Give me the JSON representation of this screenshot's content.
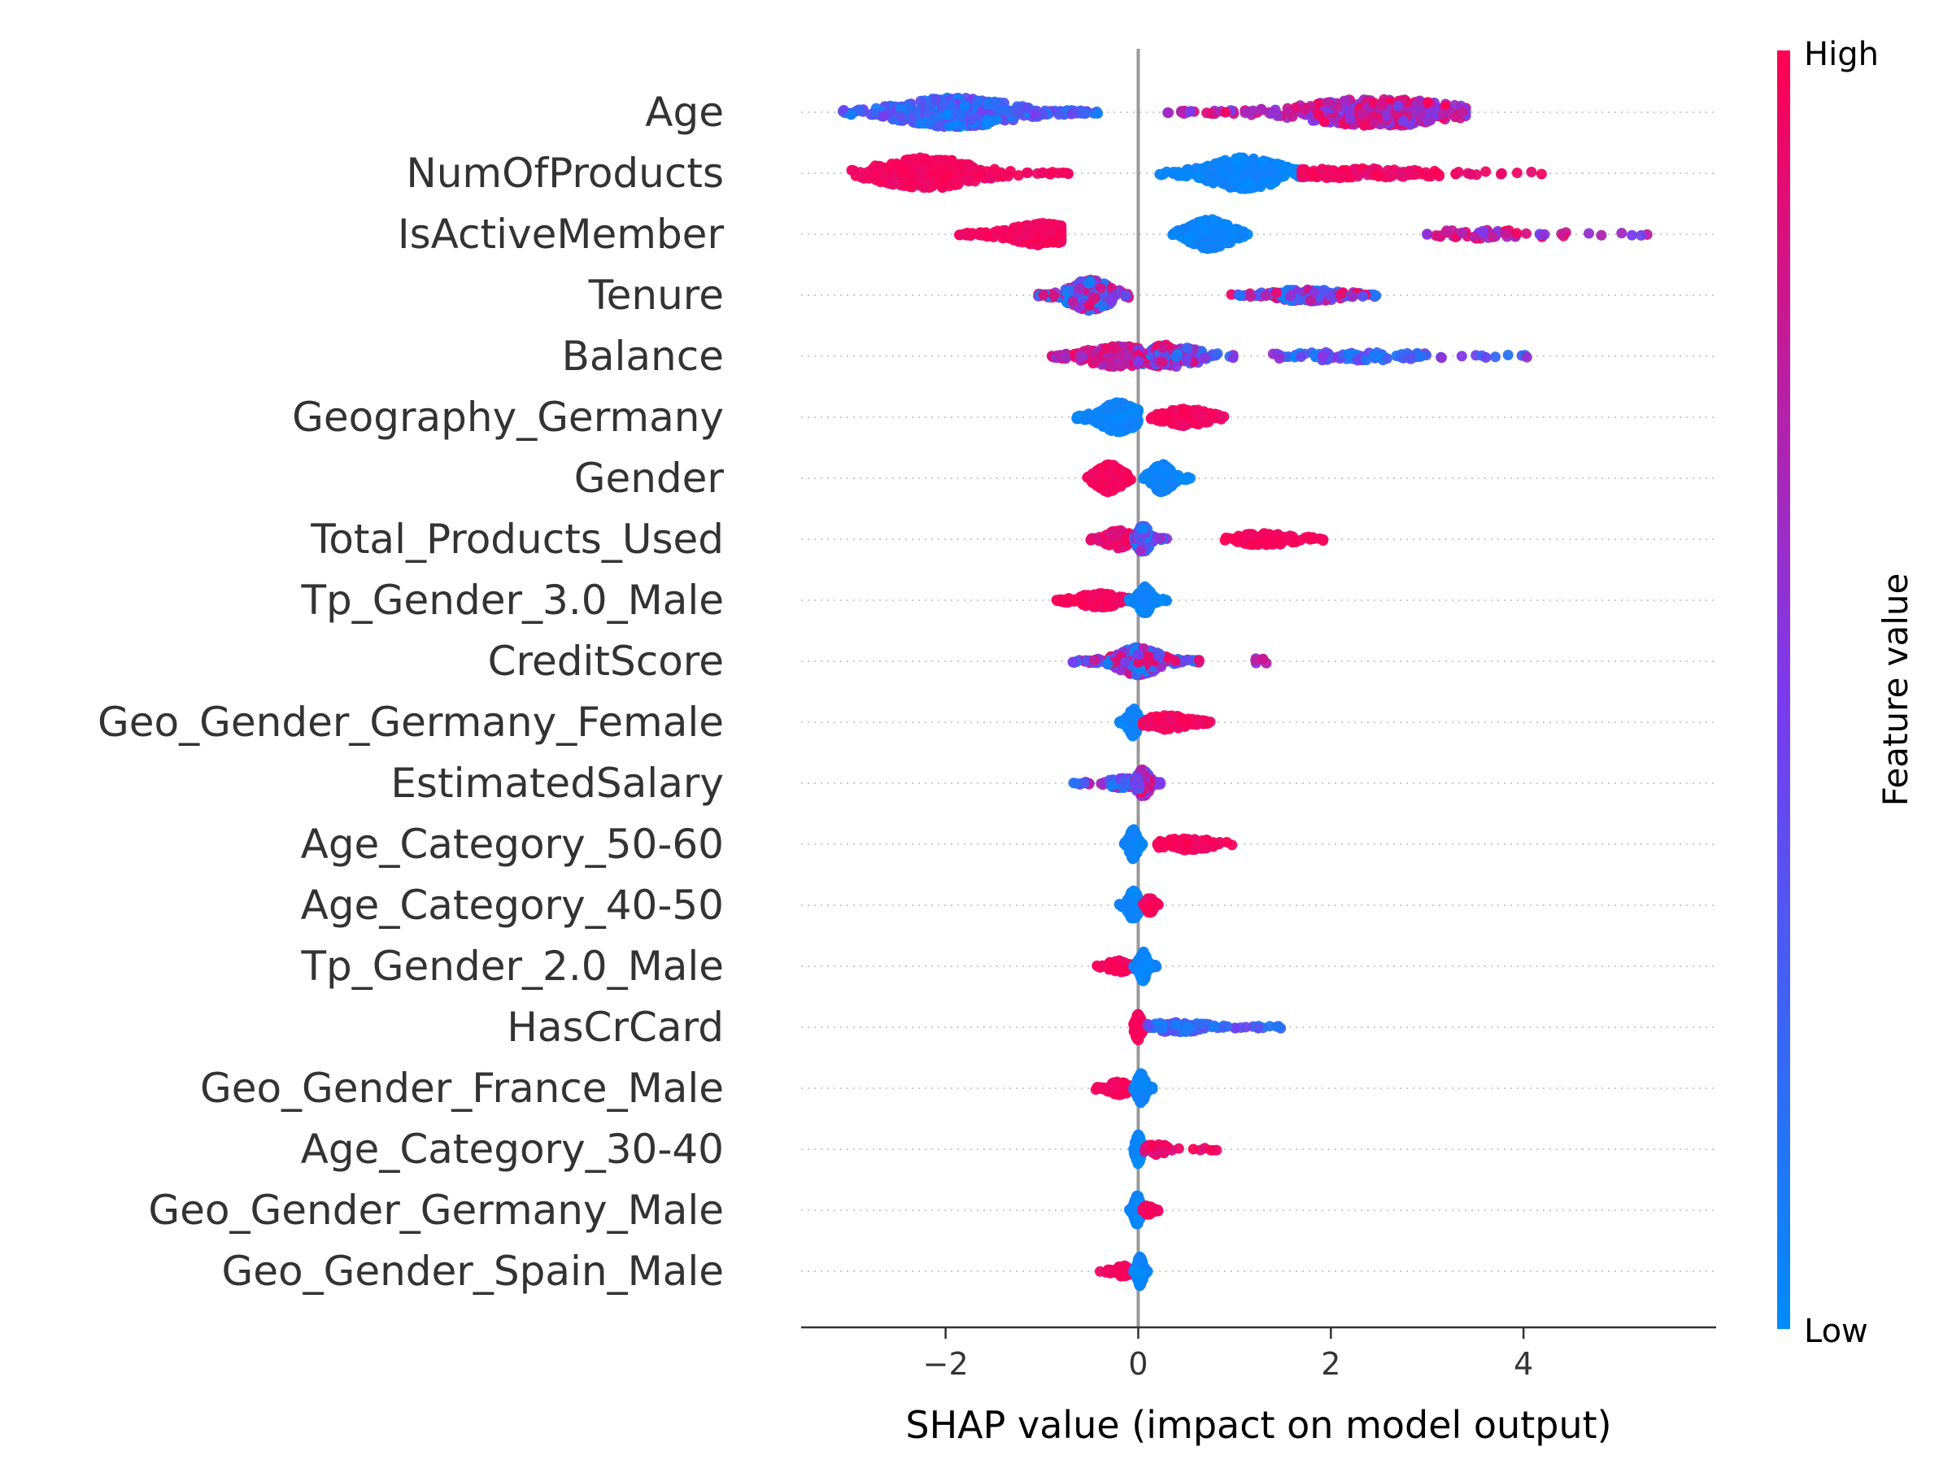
{
  "chart_data": {
    "type": "scatter",
    "subtype": "shap-beeswarm",
    "xlabel": "SHAP value (impact on model output)",
    "ylabel": "",
    "xlim": [
      -3.5,
      6.0
    ],
    "xticks": [
      -2,
      0,
      2,
      4
    ],
    "xtick_labels": [
      "−2",
      "0",
      "2",
      "4"
    ],
    "grid": false,
    "zero_line": 0,
    "colorbar": {
      "title": "Feature value",
      "high_label": "High",
      "low_label": "Low",
      "low_color": "#008bfb",
      "mid_color": "#7c3aed",
      "high_color": "#ff0052"
    },
    "features": [
      {
        "name": "Age",
        "clusters": [
          {
            "from": -3.1,
            "to": -0.3,
            "peak": -1.9,
            "width": 0.55,
            "n": 440,
            "c0": 0.0,
            "c1": 0.5,
            "h": 0.45
          },
          {
            "from": 0.3,
            "to": 3.4,
            "peak": 2.5,
            "width": 0.7,
            "n": 380,
            "c0": 0.45,
            "c1": 1.0,
            "h": 0.42
          }
        ]
      },
      {
        "name": "NumOfProducts",
        "clusters": [
          {
            "from": -3.0,
            "to": -0.7,
            "peak": -2.2,
            "width": 0.45,
            "n": 300,
            "c0": 0.92,
            "c1": 1.0,
            "h": 0.48
          },
          {
            "from": 0.2,
            "to": 1.7,
            "peak": 1.1,
            "width": 0.35,
            "n": 320,
            "c0": 0.0,
            "c1": 0.08,
            "h": 0.48
          },
          {
            "from": 1.7,
            "to": 4.2,
            "peak": 2.2,
            "width": 0.8,
            "n": 120,
            "c0": 0.88,
            "c1": 1.0,
            "h": 0.12
          }
        ]
      },
      {
        "name": "IsActiveMember",
        "clusters": [
          {
            "from": -1.9,
            "to": -0.8,
            "peak": -1.0,
            "width": 0.3,
            "n": 260,
            "c0": 0.92,
            "c1": 1.0,
            "h": 0.32
          },
          {
            "from": 0.35,
            "to": 1.15,
            "peak": 0.75,
            "width": 0.2,
            "n": 260,
            "c0": 0.0,
            "c1": 0.08,
            "h": 0.45
          },
          {
            "from": 3.0,
            "to": 5.5,
            "peak": 3.6,
            "width": 0.6,
            "n": 55,
            "c0": 0.45,
            "c1": 1.0,
            "h": 0.1
          }
        ]
      },
      {
        "name": "Tenure",
        "clusters": [
          {
            "from": -1.05,
            "to": -0.1,
            "peak": -0.5,
            "width": 0.2,
            "n": 260,
            "c0": 0.0,
            "c1": 1.0,
            "h": 0.48
          },
          {
            "from": 0.95,
            "to": 2.5,
            "peak": 1.75,
            "width": 0.35,
            "n": 170,
            "c0": 0.0,
            "c1": 1.0,
            "h": 0.16
          }
        ]
      },
      {
        "name": "Balance",
        "clusters": [
          {
            "from": -0.9,
            "to": 0.0,
            "peak": -0.2,
            "width": 0.3,
            "n": 180,
            "c0": 0.6,
            "c1": 1.0,
            "h": 0.32
          },
          {
            "from": 0.0,
            "to": 1.0,
            "peak": 0.3,
            "width": 0.3,
            "n": 160,
            "c0": 0.0,
            "c1": 1.0,
            "h": 0.34
          },
          {
            "from": 1.4,
            "to": 4.1,
            "peak": 2.2,
            "width": 0.7,
            "n": 80,
            "c0": 0.0,
            "c1": 0.6,
            "h": 0.1
          }
        ]
      },
      {
        "name": "Geography_Germany",
        "clusters": [
          {
            "from": -0.65,
            "to": 0.0,
            "peak": -0.2,
            "width": 0.18,
            "n": 220,
            "c0": 0.0,
            "c1": 0.08,
            "h": 0.45
          },
          {
            "from": 0.1,
            "to": 0.95,
            "peak": 0.5,
            "width": 0.22,
            "n": 180,
            "c0": 0.92,
            "c1": 1.0,
            "h": 0.25
          }
        ]
      },
      {
        "name": "Gender",
        "clusters": [
          {
            "from": -0.55,
            "to": -0.05,
            "peak": -0.3,
            "width": 0.12,
            "n": 220,
            "c0": 0.92,
            "c1": 1.0,
            "h": 0.42
          },
          {
            "from": 0.05,
            "to": 0.55,
            "peak": 0.25,
            "width": 0.1,
            "n": 200,
            "c0": 0.0,
            "c1": 0.08,
            "h": 0.42
          }
        ]
      },
      {
        "name": "Total_Products_Used",
        "clusters": [
          {
            "from": -0.5,
            "to": 0.0,
            "peak": -0.2,
            "width": 0.12,
            "n": 140,
            "c0": 0.8,
            "c1": 1.0,
            "h": 0.26
          },
          {
            "from": -0.05,
            "to": 0.3,
            "peak": 0.05,
            "width": 0.06,
            "n": 110,
            "c0": 0.0,
            "c1": 0.7,
            "h": 0.42
          },
          {
            "from": 0.9,
            "to": 1.95,
            "peak": 1.3,
            "width": 0.3,
            "n": 130,
            "c0": 0.92,
            "c1": 1.0,
            "h": 0.16
          }
        ]
      },
      {
        "name": "Tp_Gender_3.0_Male",
        "clusters": [
          {
            "from": -0.85,
            "to": -0.1,
            "peak": -0.4,
            "width": 0.2,
            "n": 150,
            "c0": 0.92,
            "c1": 1.0,
            "h": 0.2
          },
          {
            "from": -0.1,
            "to": 0.3,
            "peak": 0.07,
            "width": 0.06,
            "n": 180,
            "c0": 0.0,
            "c1": 0.08,
            "h": 0.42
          }
        ]
      },
      {
        "name": "CreditScore",
        "clusters": [
          {
            "from": -0.7,
            "to": 0.65,
            "peak": 0.0,
            "width": 0.2,
            "n": 320,
            "c0": 0.0,
            "c1": 1.0,
            "h": 0.42
          },
          {
            "from": 1.15,
            "to": 1.35,
            "peak": 1.25,
            "width": 0.08,
            "n": 6,
            "c0": 0.5,
            "c1": 0.9,
            "h": 0.06
          }
        ]
      },
      {
        "name": "Geo_Gender_Germany_Female",
        "clusters": [
          {
            "from": -0.2,
            "to": 0.05,
            "peak": -0.05,
            "width": 0.05,
            "n": 150,
            "c0": 0.0,
            "c1": 0.08,
            "h": 0.42
          },
          {
            "from": 0.05,
            "to": 0.8,
            "peak": 0.3,
            "width": 0.2,
            "n": 140,
            "c0": 0.92,
            "c1": 1.0,
            "h": 0.2
          }
        ]
      },
      {
        "name": "EstimatedSalary",
        "clusters": [
          {
            "from": -0.7,
            "to": -0.05,
            "peak": -0.15,
            "width": 0.15,
            "n": 90,
            "c0": 0.0,
            "c1": 0.8,
            "h": 0.12
          },
          {
            "from": -0.05,
            "to": 0.25,
            "peak": 0.05,
            "width": 0.06,
            "n": 140,
            "c0": 0.3,
            "c1": 1.0,
            "h": 0.42
          }
        ]
      },
      {
        "name": "Age_Category_50-60",
        "clusters": [
          {
            "from": -0.15,
            "to": 0.05,
            "peak": -0.05,
            "width": 0.04,
            "n": 160,
            "c0": 0.0,
            "c1": 0.08,
            "h": 0.45
          },
          {
            "from": 0.2,
            "to": 1.0,
            "peak": 0.5,
            "width": 0.25,
            "n": 110,
            "c0": 0.92,
            "c1": 1.0,
            "h": 0.16
          }
        ]
      },
      {
        "name": "Age_Category_40-50",
        "clusters": [
          {
            "from": -0.2,
            "to": 0.05,
            "peak": -0.05,
            "width": 0.05,
            "n": 160,
            "c0": 0.0,
            "c1": 0.08,
            "h": 0.45
          },
          {
            "from": 0.05,
            "to": 0.22,
            "peak": 0.12,
            "width": 0.04,
            "n": 70,
            "c0": 0.92,
            "c1": 1.0,
            "h": 0.22
          }
        ]
      },
      {
        "name": "Tp_Gender_2.0_Male",
        "clusters": [
          {
            "from": -0.45,
            "to": -0.05,
            "peak": -0.2,
            "width": 0.1,
            "n": 80,
            "c0": 0.92,
            "c1": 1.0,
            "h": 0.16
          },
          {
            "from": -0.05,
            "to": 0.2,
            "peak": 0.05,
            "width": 0.04,
            "n": 160,
            "c0": 0.0,
            "c1": 0.08,
            "h": 0.45
          }
        ]
      },
      {
        "name": "HasCrCard",
        "clusters": [
          {
            "from": -0.05,
            "to": 0.1,
            "peak": 0.0,
            "width": 0.03,
            "n": 170,
            "c0": 0.92,
            "c1": 1.0,
            "h": 0.42
          },
          {
            "from": 0.1,
            "to": 1.5,
            "peak": 0.4,
            "width": 0.3,
            "n": 100,
            "c0": 0.0,
            "c1": 0.5,
            "h": 0.12
          }
        ]
      },
      {
        "name": "Geo_Gender_France_Male",
        "clusters": [
          {
            "from": -0.45,
            "to": -0.05,
            "peak": -0.2,
            "width": 0.1,
            "n": 90,
            "c0": 0.92,
            "c1": 1.0,
            "h": 0.18
          },
          {
            "from": -0.05,
            "to": 0.15,
            "peak": 0.03,
            "width": 0.04,
            "n": 160,
            "c0": 0.0,
            "c1": 0.08,
            "h": 0.45
          }
        ]
      },
      {
        "name": "Age_Category_30-40",
        "clusters": [
          {
            "from": -0.05,
            "to": 0.12,
            "peak": 0.0,
            "width": 0.03,
            "n": 160,
            "c0": 0.0,
            "c1": 0.08,
            "h": 0.45
          },
          {
            "from": 0.05,
            "to": 0.9,
            "peak": 0.2,
            "width": 0.12,
            "n": 40,
            "c0": 0.85,
            "c1": 1.0,
            "h": 0.14
          }
        ]
      },
      {
        "name": "Geo_Gender_Germany_Male",
        "clusters": [
          {
            "from": -0.1,
            "to": 0.07,
            "peak": -0.01,
            "width": 0.03,
            "n": 170,
            "c0": 0.0,
            "c1": 0.08,
            "h": 0.45
          },
          {
            "from": 0.03,
            "to": 0.22,
            "peak": 0.1,
            "width": 0.04,
            "n": 40,
            "c0": 0.92,
            "c1": 1.0,
            "h": 0.12
          }
        ]
      },
      {
        "name": "Geo_Gender_Spain_Male",
        "clusters": [
          {
            "from": -0.4,
            "to": -0.02,
            "peak": -0.15,
            "width": 0.08,
            "n": 70,
            "c0": 0.92,
            "c1": 1.0,
            "h": 0.14
          },
          {
            "from": -0.05,
            "to": 0.1,
            "peak": 0.02,
            "width": 0.03,
            "n": 160,
            "c0": 0.0,
            "c1": 0.08,
            "h": 0.45
          }
        ]
      }
    ]
  }
}
